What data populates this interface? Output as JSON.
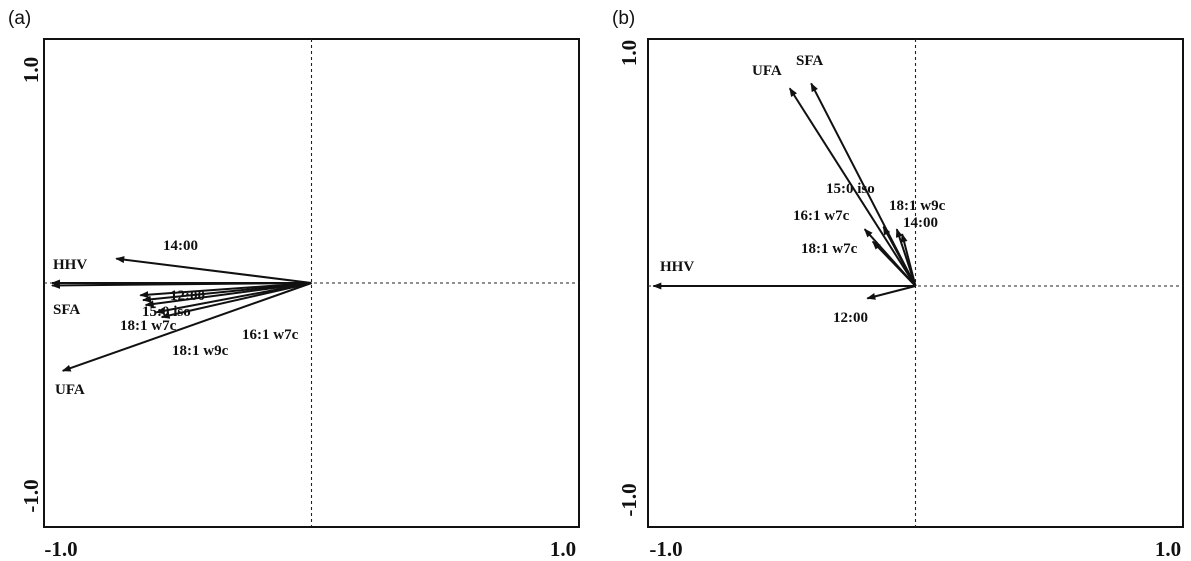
{
  "chart_data": [
    {
      "type": "biplot",
      "panel": "(a)",
      "xlim": [
        -1.0,
        1.0
      ],
      "ylim": [
        -1.0,
        1.0
      ],
      "x_ticks": [
        "-1.0",
        "1.0"
      ],
      "y_ticks": [
        "1.0",
        "-1.0"
      ],
      "vectors": [
        {
          "label": "HHV",
          "x": -0.97,
          "y": 0.0
        },
        {
          "label": "SFA",
          "x": -0.97,
          "y": -0.01
        },
        {
          "label": "14:00",
          "x": -0.73,
          "y": 0.1
        },
        {
          "label": "12:00",
          "x": -0.64,
          "y": -0.05
        },
        {
          "label": "15:0 iso",
          "x": -0.63,
          "y": -0.07
        },
        {
          "label": "18:1 w7c",
          "x": -0.62,
          "y": -0.09
        },
        {
          "label": "16:1 w7c",
          "x": -0.56,
          "y": -0.14
        },
        {
          "label": "18:1 w9c",
          "x": -0.58,
          "y": -0.12
        },
        {
          "label": "UFA",
          "x": -0.93,
          "y": -0.36
        }
      ]
    },
    {
      "type": "biplot",
      "panel": "(b)",
      "xlim": [
        -1.0,
        1.0
      ],
      "ylim": [
        -1.0,
        1.0
      ],
      "x_ticks": [
        "-1.0",
        "1.0"
      ],
      "y_ticks": [
        "1.0",
        "-1.0"
      ],
      "vectors": [
        {
          "label": "HHV",
          "x": -0.98,
          "y": 0.0
        },
        {
          "label": "UFA",
          "x": -0.47,
          "y": 0.8
        },
        {
          "label": "SFA",
          "x": -0.39,
          "y": 0.82
        },
        {
          "label": "15:0 iso",
          "x": -0.12,
          "y": 0.24
        },
        {
          "label": "18:1 w9c",
          "x": -0.07,
          "y": 0.23
        },
        {
          "label": "14:00",
          "x": -0.05,
          "y": 0.21
        },
        {
          "label": "16:1 w7c",
          "x": -0.19,
          "y": 0.23
        },
        {
          "label": "18:1 w7c",
          "x": -0.16,
          "y": 0.18
        },
        {
          "label": "12:00",
          "x": -0.18,
          "y": -0.05
        }
      ]
    }
  ]
}
